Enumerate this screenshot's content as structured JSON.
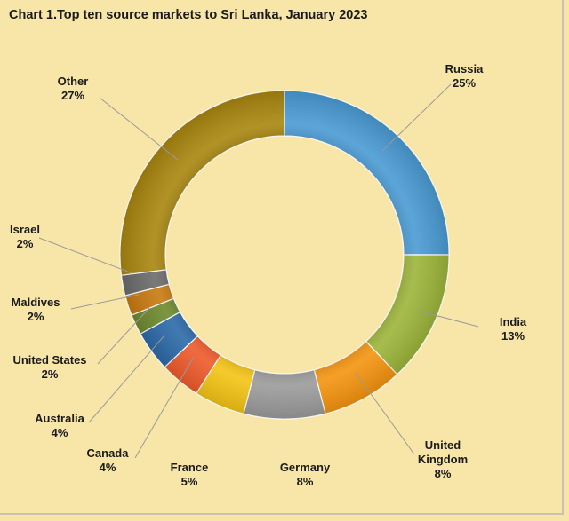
{
  "chart_data": {
    "type": "pie",
    "title": "Chart 1.Top ten source markets to Sri Lanka, January 2023",
    "slices": [
      {
        "name": "Russia",
        "label": [
          "Russia"
        ],
        "value": 25,
        "pct": "25%",
        "color": "#4a9bd4"
      },
      {
        "name": "India",
        "label": [
          "India"
        ],
        "value": 13,
        "pct": "13%",
        "color": "#9cb53a"
      },
      {
        "name": "United Kingdom",
        "label": [
          "United",
          "Kingdom"
        ],
        "value": 8,
        "pct": "8%",
        "color": "#f5940f"
      },
      {
        "name": "Germany",
        "label": [
          "Germany"
        ],
        "value": 8,
        "pct": "8%",
        "color": "#9b9b9b"
      },
      {
        "name": "France",
        "label": [
          "France"
        ],
        "value": 5,
        "pct": "5%",
        "color": "#f4c414"
      },
      {
        "name": "Canada",
        "label": [
          "Canada"
        ],
        "value": 4,
        "pct": "4%",
        "color": "#ef5a2a"
      },
      {
        "name": "Australia",
        "label": [
          "Australia"
        ],
        "value": 4,
        "pct": "4%",
        "color": "#2b6aa8"
      },
      {
        "name": "United States",
        "label": [
          "United States"
        ],
        "value": 2,
        "pct": "2%",
        "color": "#6e8a2e"
      },
      {
        "name": "Maldives",
        "label": [
          "Maldives"
        ],
        "value": 2,
        "pct": "2%",
        "color": "#c97a10"
      },
      {
        "name": "Israel",
        "label": [
          "Israel"
        ],
        "value": 2,
        "pct": "2%",
        "color": "#6b6b6b"
      },
      {
        "name": "Other",
        "label": [
          "Other"
        ],
        "value": 27,
        "pct": "27%",
        "color": "#a8860f"
      }
    ]
  }
}
